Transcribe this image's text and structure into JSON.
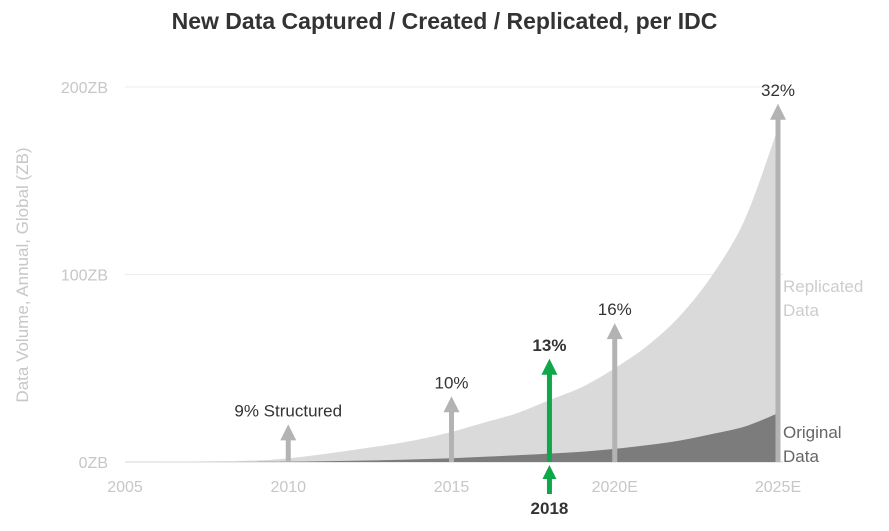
{
  "chart_data": {
    "type": "area",
    "title": "New Data Captured / Created / Replicated, per IDC",
    "ylabel": "Data Volume, Annual, Global (ZB)",
    "xlabel": "",
    "xlim": [
      2005,
      2025
    ],
    "ylim": [
      0,
      200
    ],
    "x_ticks": [
      {
        "value": 2005,
        "label": "2005"
      },
      {
        "value": 2010,
        "label": "2010"
      },
      {
        "value": 2015,
        "label": "2015"
      },
      {
        "value": 2020,
        "label": "2020E"
      },
      {
        "value": 2025,
        "label": "2025E"
      }
    ],
    "y_ticks": [
      {
        "value": 0,
        "label": "0ZB"
      },
      {
        "value": 100,
        "label": "100ZB"
      },
      {
        "value": 200,
        "label": "200ZB"
      }
    ],
    "grid": true,
    "series": [
      {
        "name": "Replicated Data",
        "color": "#d9dad9",
        "x": [
          2005,
          2007,
          2009,
          2010,
          2011,
          2012,
          2013,
          2014,
          2015,
          2016,
          2017,
          2018,
          2019,
          2020,
          2021,
          2022,
          2023,
          2024,
          2025
        ],
        "values": [
          0,
          0.3,
          0.8,
          2,
          4,
          6.5,
          9,
          12,
          16,
          21,
          26,
          33,
          40,
          50,
          62,
          78,
          100,
          130,
          178
        ]
      },
      {
        "name": "Original Data",
        "color": "#7c7c7c",
        "x": [
          2005,
          2007,
          2009,
          2010,
          2011,
          2012,
          2013,
          2014,
          2015,
          2016,
          2017,
          2018,
          2019,
          2020,
          2021,
          2022,
          2023,
          2024,
          2025
        ],
        "values": [
          0,
          0,
          0.1,
          0.2,
          0.4,
          0.7,
          1,
          1.5,
          2,
          2.8,
          3.6,
          4.5,
          5.5,
          7,
          9,
          11.5,
          15,
          19,
          26
        ]
      }
    ],
    "annotations": [
      {
        "x": 2010,
        "arrow_top": 19,
        "text": "9% Structured",
        "color": "#b3b3b3",
        "bold": false
      },
      {
        "x": 2015,
        "arrow_top": 34,
        "text": "10%",
        "color": "#b3b3b3",
        "bold": false
      },
      {
        "x": 2018,
        "arrow_top": 54,
        "text": "13%",
        "color": "#10a64a",
        "bold": true
      },
      {
        "x": 2020,
        "arrow_top": 73,
        "text": "16%",
        "color": "#b3b3b3",
        "bold": false
      },
      {
        "x": 2025,
        "arrow_top": 190,
        "text": "32%",
        "color": "#b3b3b3",
        "bold": false
      }
    ],
    "highlight": {
      "x": 2018,
      "label": "2018",
      "color": "#10a64a"
    },
    "series_labels": {
      "replicated": [
        "Replicated",
        "Data"
      ],
      "original": [
        "Original",
        "Data"
      ]
    }
  }
}
